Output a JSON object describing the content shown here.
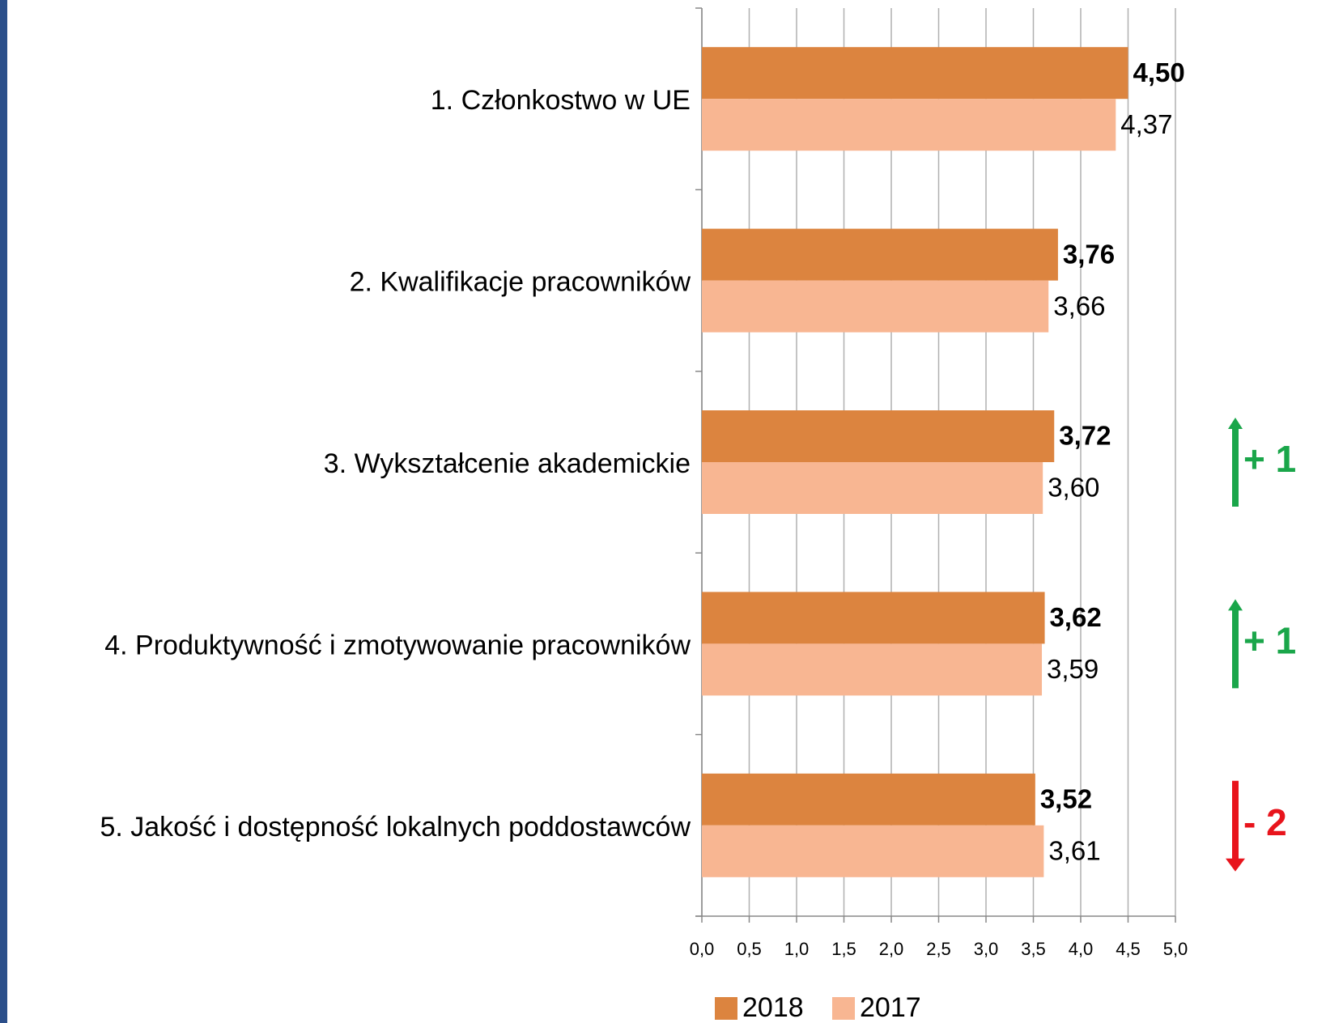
{
  "chart_data": {
    "type": "bar",
    "orientation": "horizontal",
    "categories": [
      "1. Członkostwo w UE",
      "2. Kwalifikacje pracowników",
      "3. Wykształcenie akademickie",
      "4. Produktywność i zmotywowanie pracowników",
      "5. Jakość i dostępność lokalnych poddostawców"
    ],
    "series": [
      {
        "name": "2018",
        "color": "#dc843f",
        "values": [
          4.5,
          3.76,
          3.72,
          3.62,
          3.52
        ],
        "value_labels": [
          "4,50",
          "3,76",
          "3,72",
          "3,62",
          "3,52"
        ]
      },
      {
        "name": "2017",
        "color": "#f8b692",
        "values": [
          4.37,
          3.66,
          3.6,
          3.59,
          3.61
        ],
        "value_labels": [
          "4,37",
          "3,66",
          "3,60",
          "3,59",
          "3,61"
        ]
      }
    ],
    "xlim": [
      0,
      5
    ],
    "xticks": [
      {
        "value": 0,
        "label": "0,0"
      },
      {
        "value": 0.5,
        "label": "0,5"
      },
      {
        "value": 1,
        "label": "1,0"
      },
      {
        "value": 1.5,
        "label": "1,5"
      },
      {
        "value": 2,
        "label": "2,0"
      },
      {
        "value": 2.5,
        "label": "2,5"
      },
      {
        "value": 3,
        "label": "3,0"
      },
      {
        "value": 3.5,
        "label": "3,5"
      },
      {
        "value": 4,
        "label": "4,0"
      },
      {
        "value": 4.5,
        "label": "4,5"
      },
      {
        "value": 5,
        "label": "5,0"
      }
    ],
    "grid": true,
    "legend": "bottom",
    "annotations": [
      {
        "text": "+ 1",
        "color": "#1aa64a"
      },
      {
        "text": "+ 1",
        "color": "#1aa64a"
      },
      {
        "text": "- 2",
        "color": "#e8141c"
      }
    ]
  }
}
